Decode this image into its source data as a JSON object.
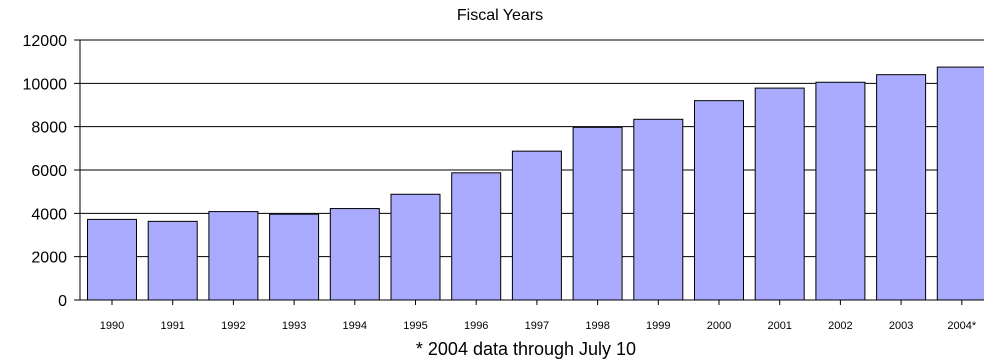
{
  "chart_data": {
    "type": "bar",
    "title": "Fiscal Years",
    "footnote": "* 2004 data through July 10",
    "categories": [
      "1990",
      "1991",
      "1992",
      "1993",
      "1994",
      "1995",
      "1996",
      "1997",
      "1998",
      "1999",
      "2000",
      "2001",
      "2002",
      "2003",
      "2004*"
    ],
    "values": [
      3720,
      3630,
      4080,
      3960,
      4220,
      4880,
      5870,
      6870,
      7970,
      8340,
      9200,
      9780,
      10050,
      10400,
      10750
    ],
    "ylim": [
      0,
      12000
    ],
    "yticks": [
      "0",
      "2000",
      "4000",
      "6000",
      "8000",
      "10000",
      "12000"
    ],
    "xlabel": "",
    "ylabel": "",
    "grid": true,
    "colors": {
      "bar_fill": "#aaaaff",
      "bar_stroke": "#000000",
      "grid": "#000000"
    }
  }
}
